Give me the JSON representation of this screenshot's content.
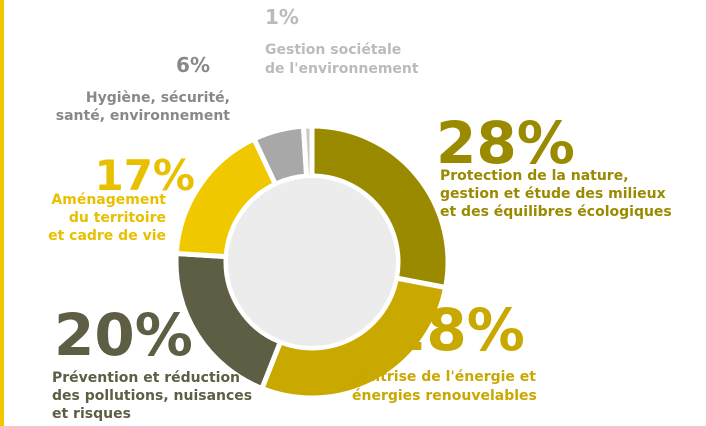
{
  "chart_data": {
    "type": "donut",
    "categories": [
      "Protection de la nature,\ngestion et étude des milieux\net des équilibres écologiques",
      "Maîtrise de l'énergie et\nénergies renouvelables",
      "Prévention et réduction\ndes pollutions, nuisances\net risques",
      "Aménagement\ndu territoire\net cadre de vie",
      "Hygiène, sécurité,\nsanté, environnement",
      "Gestion sociétale\nde l'environnement"
    ],
    "values": [
      28,
      28,
      20,
      17,
      6,
      1
    ],
    "value_labels": [
      "28%",
      "28%",
      "20%",
      "17%",
      "6%",
      "1%"
    ],
    "colors": [
      "#9a8a00",
      "#c9a800",
      "#5e5e45",
      "#f0c800",
      "#a8a8a8",
      "#c8c8c8"
    ]
  }
}
